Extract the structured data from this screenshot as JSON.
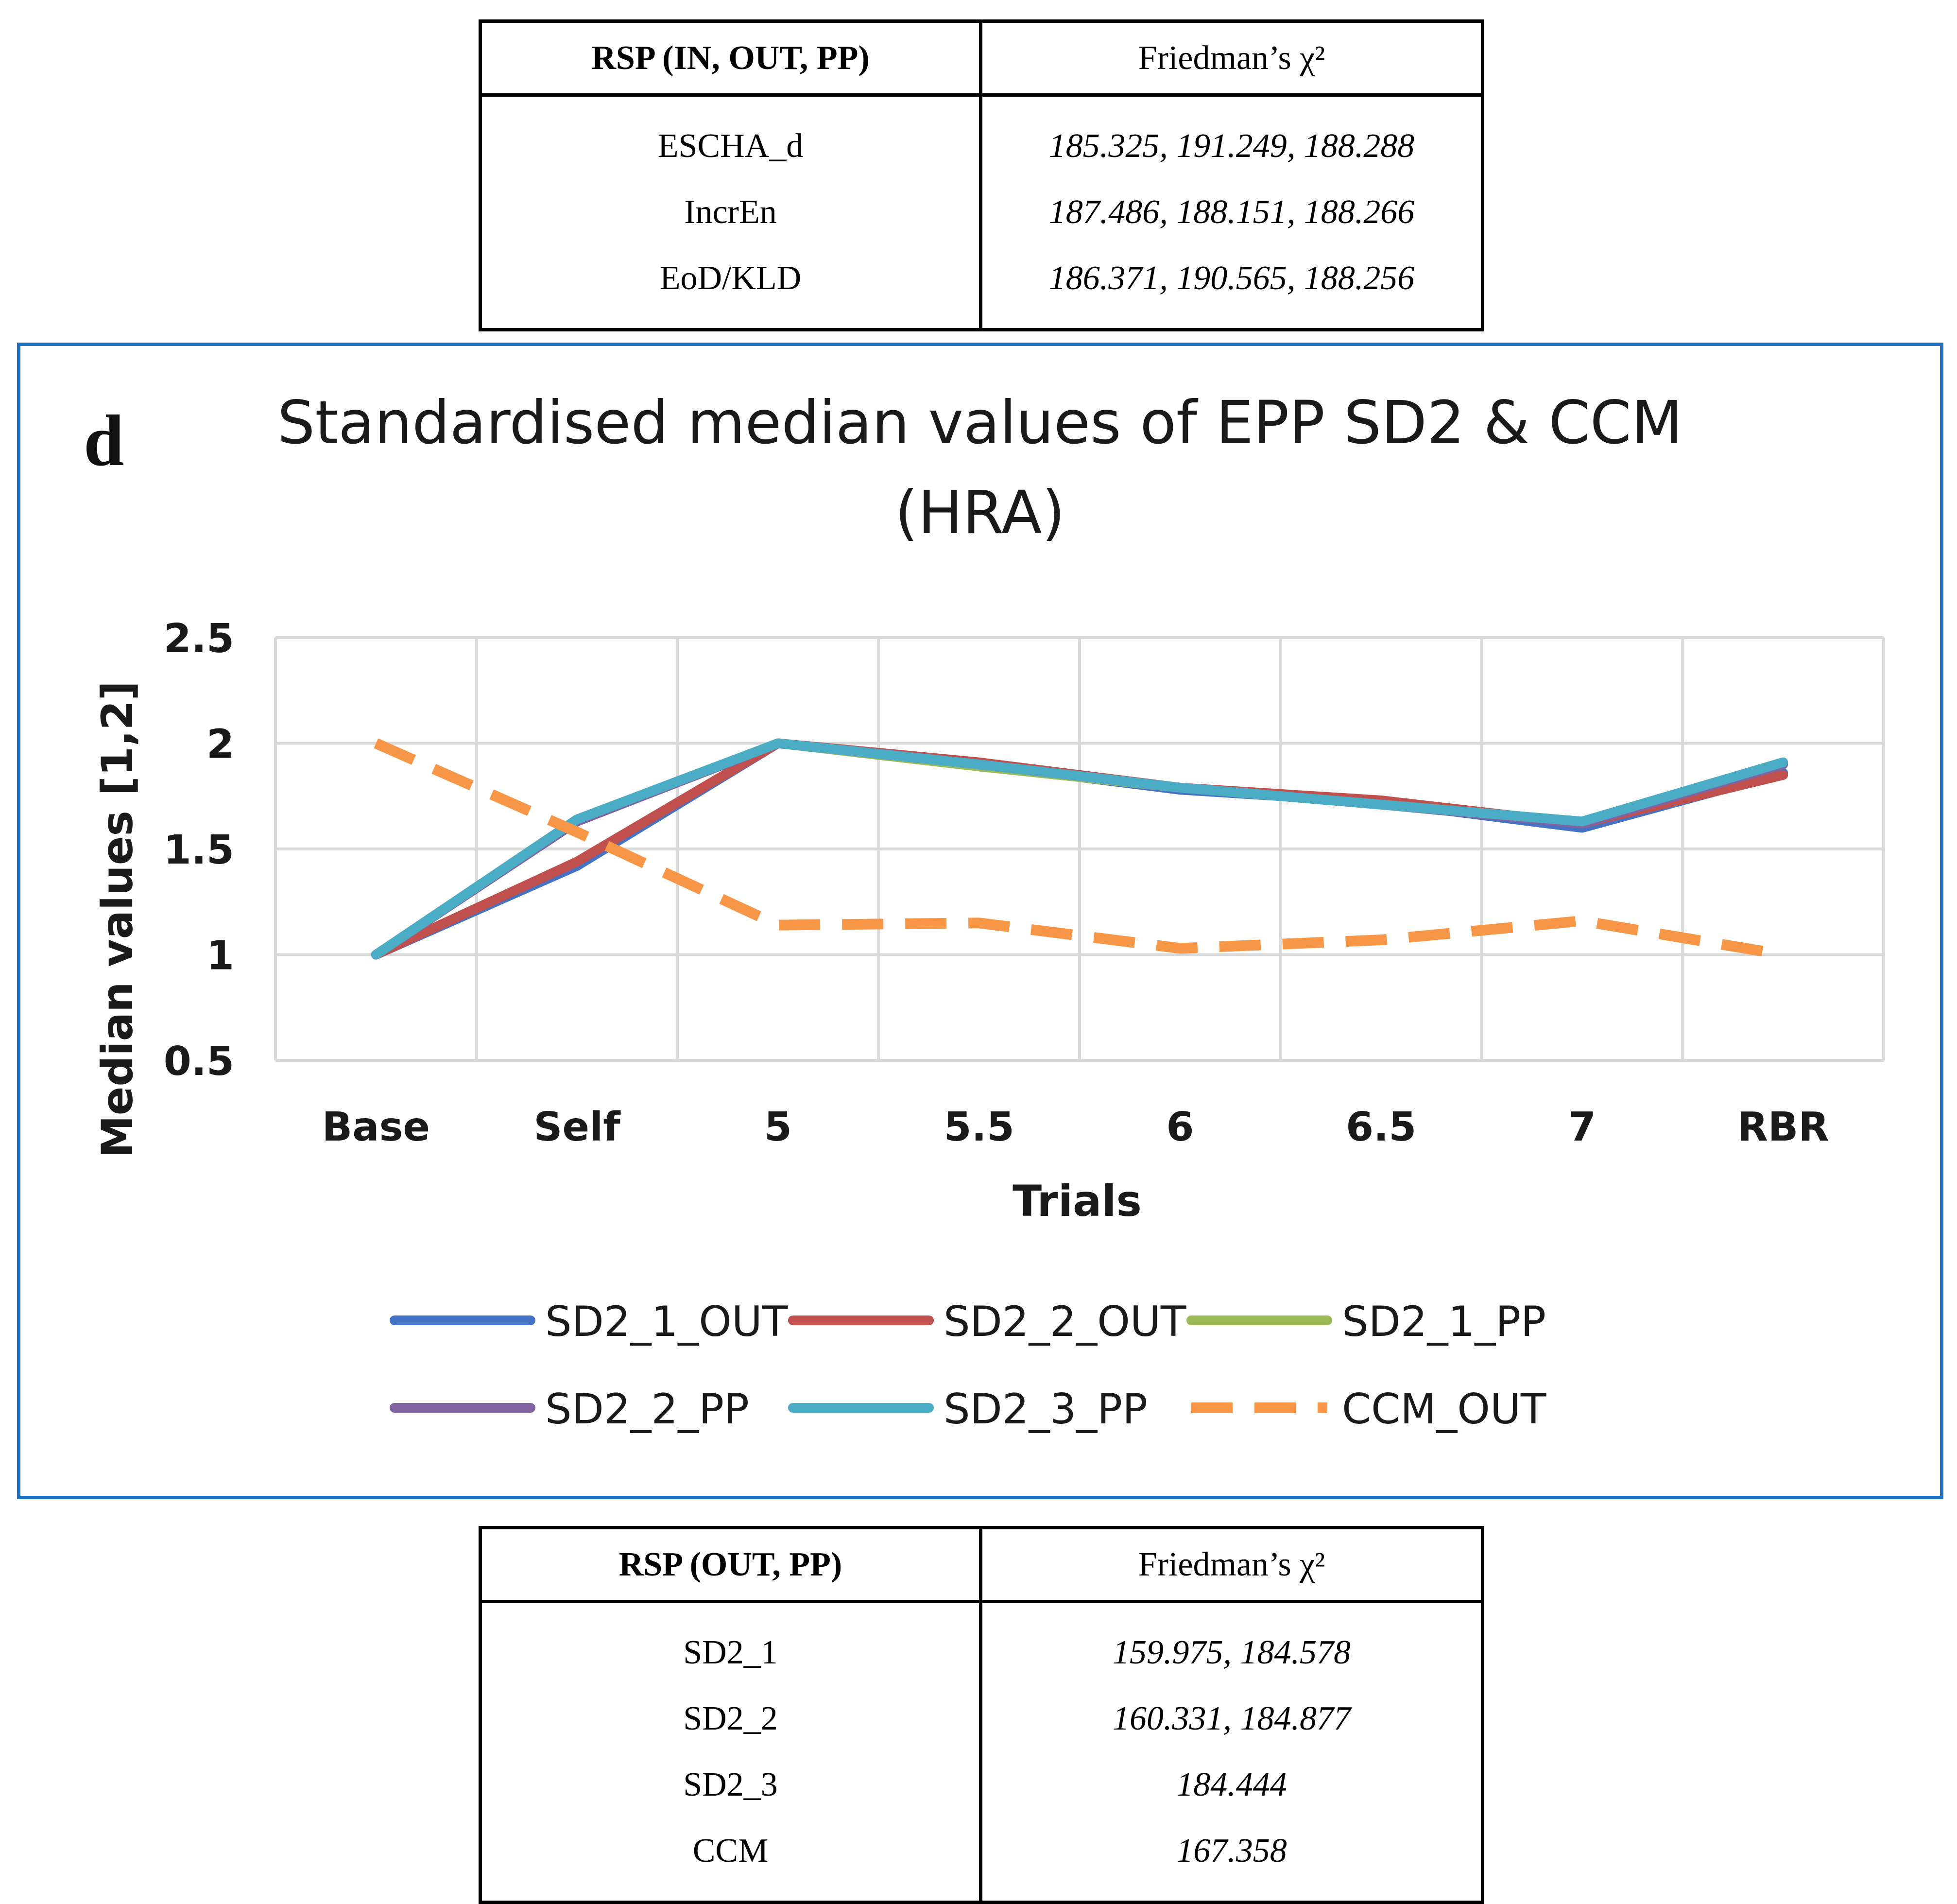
{
  "top_table": {
    "header": [
      "RSP (IN, OUT, PP)",
      "Friedman’s χ²"
    ],
    "rows": [
      [
        "ESCHA_d",
        "185.325, 191.249, 188.288"
      ],
      [
        "IncrEn",
        "187.486, 188.151, 188.266"
      ],
      [
        "EoD/KLD",
        "186.371, 190.565, 188.256"
      ]
    ]
  },
  "bottom_table": {
    "header": [
      "RSP (OUT, PP)",
      "Friedman’s χ²"
    ],
    "rows": [
      [
        "SD2_1",
        "159.975, 184.578"
      ],
      [
        "SD2_2",
        "160.331, 184.877"
      ],
      [
        "SD2_3",
        "184.444"
      ],
      [
        "CCM",
        "167.358"
      ]
    ]
  },
  "panel_label": "d",
  "chart_data": {
    "type": "line",
    "title_line1": "Standardised median values of EPP SD2 & CCM",
    "title_line2": "(HRA)",
    "xlabel": "Trials",
    "ylabel": "Median values [1,2]",
    "categories": [
      "Base",
      "Self",
      "5",
      "5.5",
      "6",
      "6.5",
      "7",
      "RBR"
    ],
    "ylim": [
      0.5,
      2.5
    ],
    "yticks": [
      0.5,
      1,
      1.5,
      2,
      2.5
    ],
    "ytick_labels": [
      "0.5",
      "1",
      "1.5",
      "2",
      "2.5"
    ],
    "grid": true,
    "legend_position": "bottom",
    "series": [
      {
        "name": "SD2_1_OUT",
        "color": "#4472c4",
        "dash": false,
        "values": [
          1.0,
          1.42,
          2.0,
          1.9,
          1.78,
          1.72,
          1.6,
          1.86
        ]
      },
      {
        "name": "SD2_2_OUT",
        "color": "#c0504d",
        "dash": false,
        "values": [
          1.0,
          1.44,
          2.0,
          1.91,
          1.79,
          1.73,
          1.62,
          1.85
        ]
      },
      {
        "name": "SD2_1_PP",
        "color": "#9bbb59",
        "dash": false,
        "values": [
          1.0,
          1.64,
          2.0,
          1.89,
          1.79,
          1.71,
          1.63,
          1.91
        ]
      },
      {
        "name": "SD2_2_PP",
        "color": "#8064a2",
        "dash": false,
        "values": [
          1.0,
          1.63,
          2.0,
          1.9,
          1.79,
          1.71,
          1.62,
          1.9
        ]
      },
      {
        "name": "SD2_3_PP",
        "color": "#4bacc6",
        "dash": false,
        "values": [
          1.0,
          1.64,
          2.0,
          1.9,
          1.79,
          1.71,
          1.63,
          1.91
        ]
      },
      {
        "name": "CCM_OUT",
        "color": "#f79646",
        "dash": true,
        "values": [
          2.0,
          1.58,
          1.14,
          1.15,
          1.03,
          1.07,
          1.16,
          1.0
        ]
      }
    ]
  }
}
